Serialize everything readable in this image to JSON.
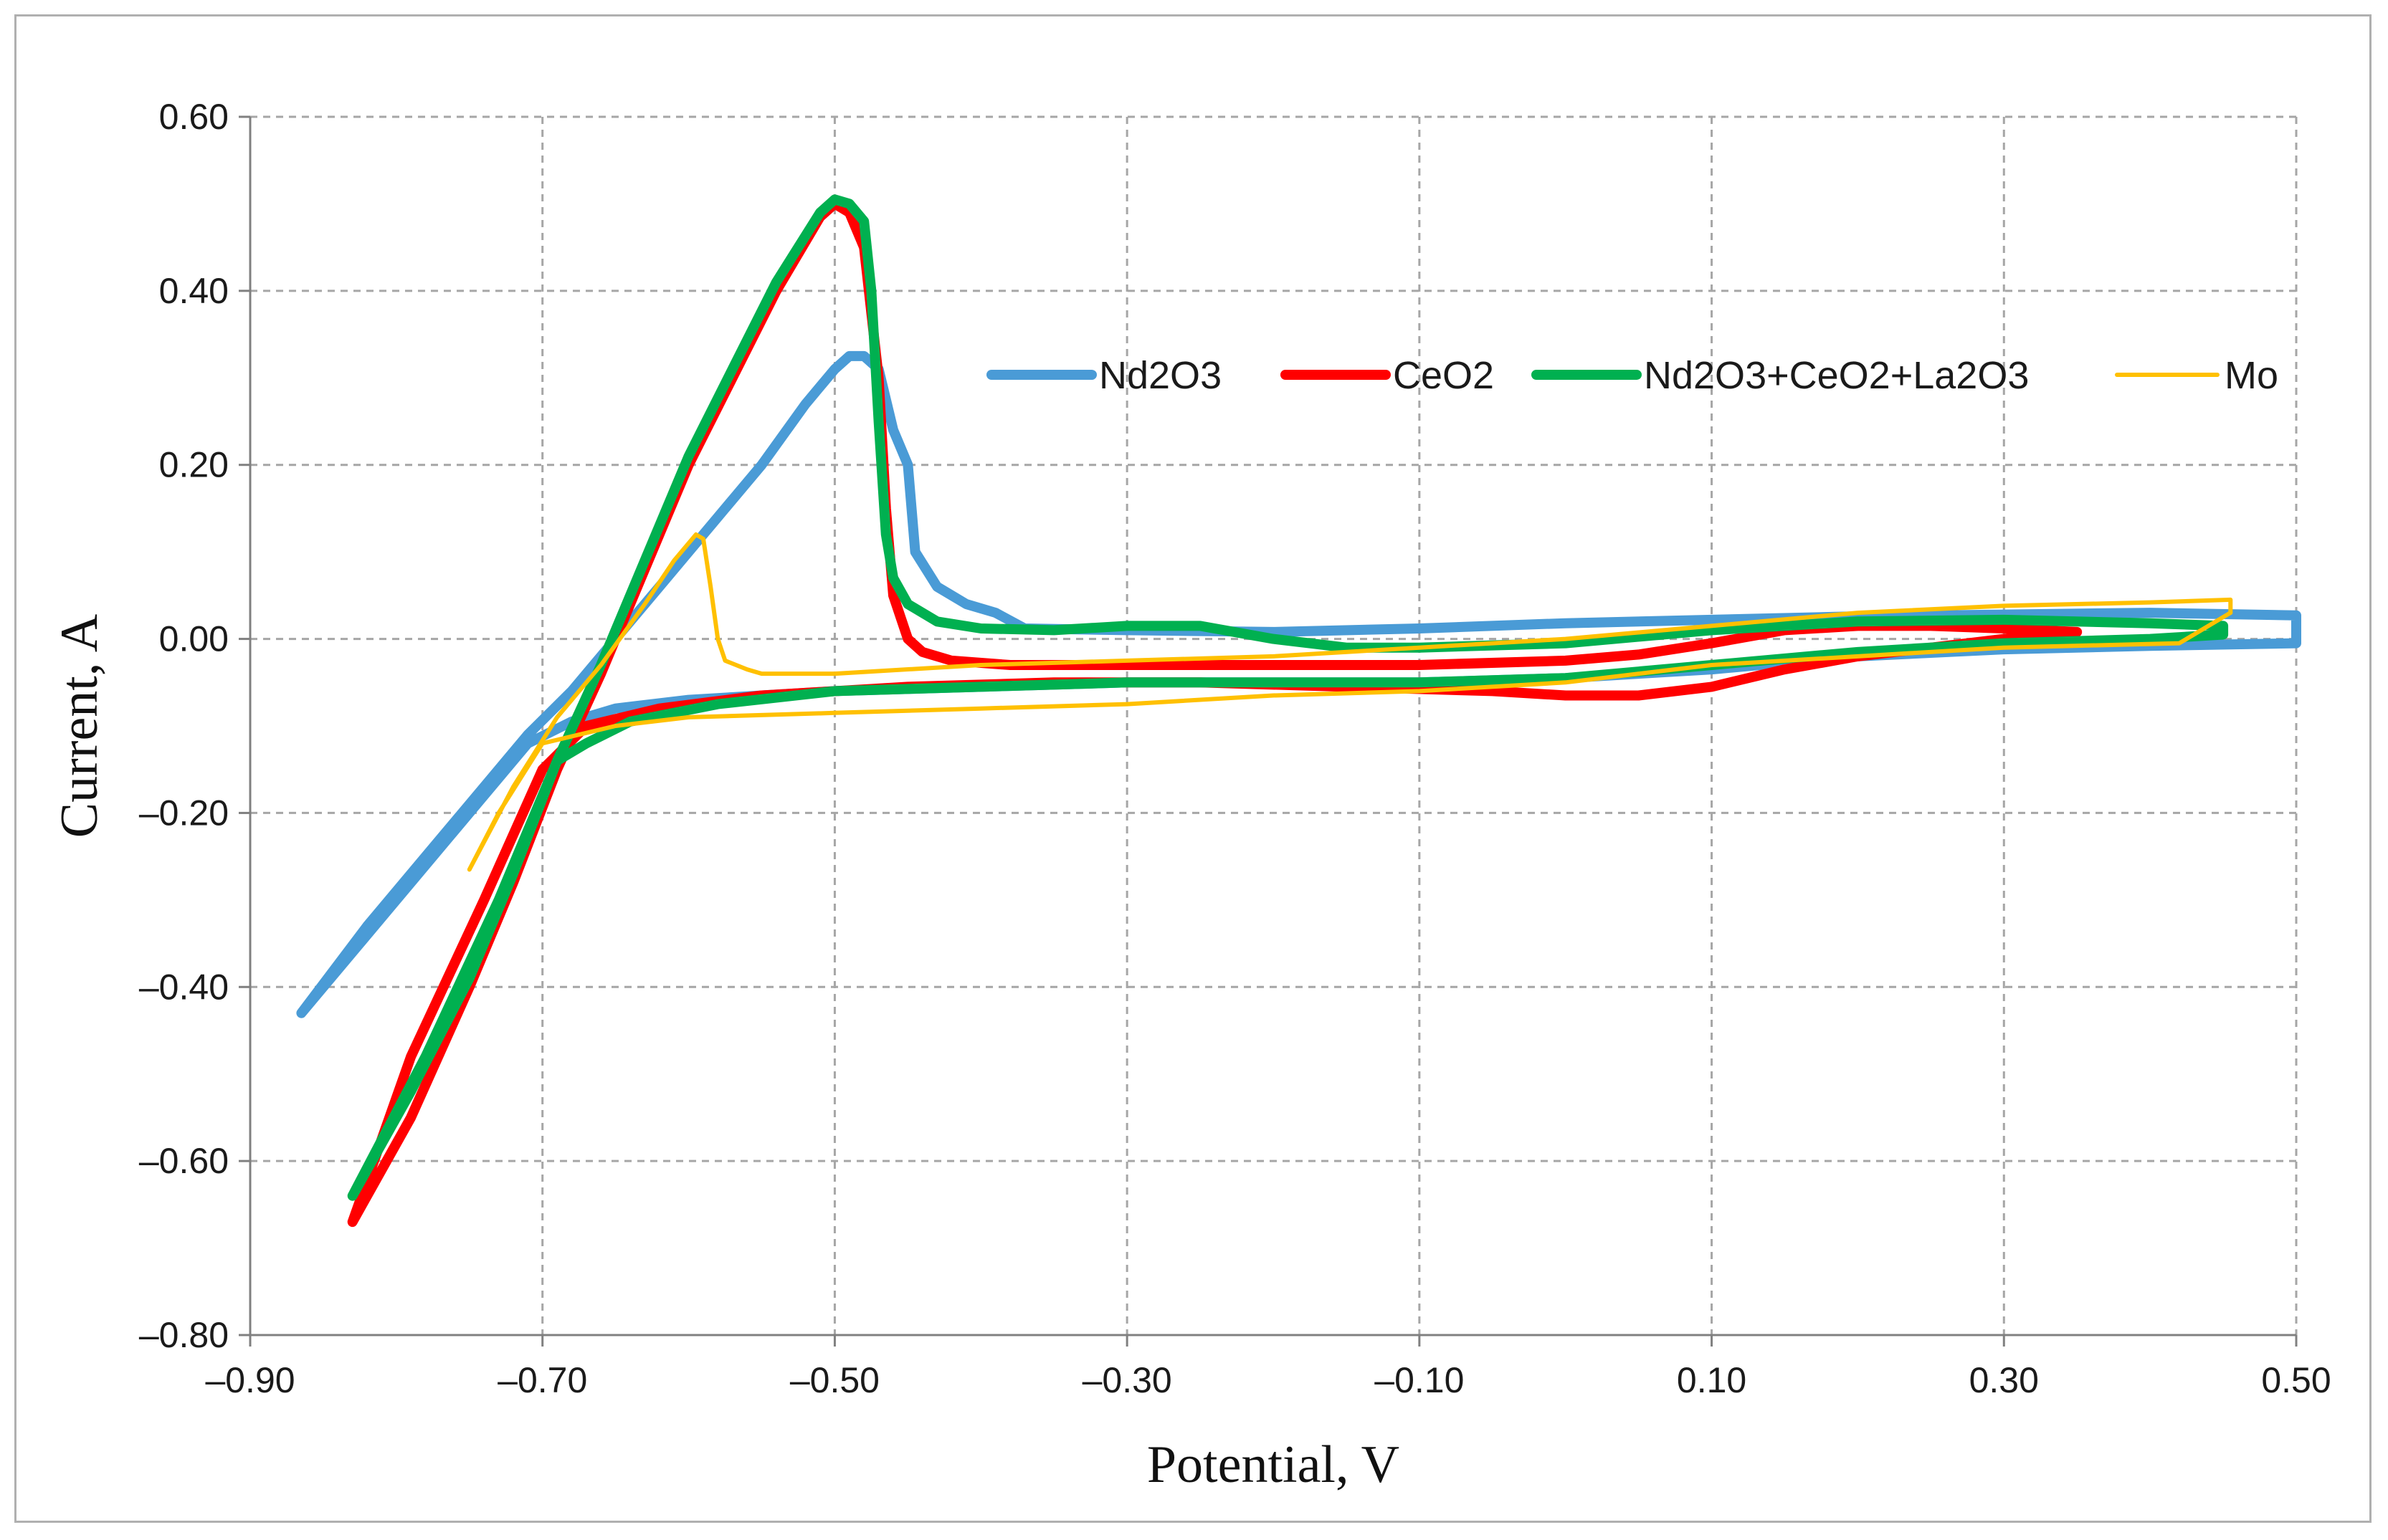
{
  "chart_data": {
    "type": "line",
    "title": "",
    "xlabel": "Potential, V",
    "ylabel": "Current,  A",
    "xlim": [
      -0.9,
      0.5
    ],
    "ylim": [
      -0.8,
      0.6
    ],
    "x_ticks": [
      -0.9,
      -0.7,
      -0.5,
      -0.3,
      -0.1,
      0.1,
      0.3,
      0.5
    ],
    "x_tick_labels": [
      "–0.90",
      "–0.70",
      "–0.50",
      "–0.30",
      "–0.10",
      "0.10",
      "0.30",
      "0.50"
    ],
    "y_ticks": [
      0.6,
      0.4,
      0.2,
      0.0,
      -0.2,
      -0.4,
      -0.6,
      -0.8
    ],
    "y_tick_labels": [
      "0.60",
      "0.40",
      "0.20",
      "0.00",
      "–0.20",
      "–0.40",
      "–0.60",
      "–0.80"
    ],
    "grid": "dashed",
    "legend_position": "top-right",
    "series": [
      {
        "name": "Nd2O3",
        "color": "#4a9bd6",
        "width": "thick",
        "points": [
          [
            -0.865,
            -0.43
          ],
          [
            -0.82,
            -0.33
          ],
          [
            -0.78,
            -0.25
          ],
          [
            -0.74,
            -0.17
          ],
          [
            -0.71,
            -0.11
          ],
          [
            -0.68,
            -0.06
          ],
          [
            -0.65,
            0.0
          ],
          [
            -0.62,
            0.06
          ],
          [
            -0.58,
            0.14
          ],
          [
            -0.55,
            0.2
          ],
          [
            -0.52,
            0.27
          ],
          [
            -0.5,
            0.31
          ],
          [
            -0.49,
            0.325
          ],
          [
            -0.48,
            0.325
          ],
          [
            -0.47,
            0.31
          ],
          [
            -0.46,
            0.24
          ],
          [
            -0.45,
            0.2
          ],
          [
            -0.445,
            0.1
          ],
          [
            -0.43,
            0.06
          ],
          [
            -0.41,
            0.04
          ],
          [
            -0.39,
            0.03
          ],
          [
            -0.37,
            0.012
          ],
          [
            -0.3,
            0.01
          ],
          [
            -0.2,
            0.008
          ],
          [
            -0.1,
            0.012
          ],
          [
            0.0,
            0.018
          ],
          [
            0.1,
            0.022
          ],
          [
            0.2,
            0.026
          ],
          [
            0.3,
            0.028
          ],
          [
            0.4,
            0.03
          ],
          [
            0.5,
            0.027
          ],
          [
            0.5,
            -0.005
          ],
          [
            0.4,
            -0.008
          ],
          [
            0.3,
            -0.012
          ],
          [
            0.2,
            -0.02
          ],
          [
            0.1,
            -0.035
          ],
          [
            0.0,
            -0.045
          ],
          [
            -0.1,
            -0.05
          ],
          [
            -0.2,
            -0.05
          ],
          [
            -0.3,
            -0.05
          ],
          [
            -0.4,
            -0.055
          ],
          [
            -0.5,
            -0.06
          ],
          [
            -0.6,
            -0.07
          ],
          [
            -0.65,
            -0.08
          ],
          [
            -0.68,
            -0.095
          ],
          [
            -0.71,
            -0.12
          ],
          [
            -0.75,
            -0.2
          ],
          [
            -0.79,
            -0.28
          ],
          [
            -0.865,
            -0.43
          ]
        ]
      },
      {
        "name": "CeO2",
        "color": "#ff0000",
        "width": "thick",
        "points": [
          [
            -0.83,
            -0.67
          ],
          [
            -0.79,
            -0.55
          ],
          [
            -0.75,
            -0.4
          ],
          [
            -0.72,
            -0.28
          ],
          [
            -0.69,
            -0.15
          ],
          [
            -0.66,
            -0.04
          ],
          [
            -0.63,
            0.08
          ],
          [
            -0.6,
            0.2
          ],
          [
            -0.57,
            0.3
          ],
          [
            -0.54,
            0.4
          ],
          [
            -0.51,
            0.485
          ],
          [
            -0.5,
            0.5
          ],
          [
            -0.49,
            0.49
          ],
          [
            -0.48,
            0.45
          ],
          [
            -0.47,
            0.3
          ],
          [
            -0.465,
            0.15
          ],
          [
            -0.46,
            0.05
          ],
          [
            -0.45,
            0.0
          ],
          [
            -0.44,
            -0.015
          ],
          [
            -0.42,
            -0.025
          ],
          [
            -0.38,
            -0.03
          ],
          [
            -0.3,
            -0.03
          ],
          [
            -0.2,
            -0.03
          ],
          [
            -0.1,
            -0.03
          ],
          [
            0.0,
            -0.025
          ],
          [
            0.05,
            -0.018
          ],
          [
            0.1,
            -0.005
          ],
          [
            0.15,
            0.01
          ],
          [
            0.2,
            0.015
          ],
          [
            0.25,
            0.015
          ],
          [
            0.3,
            0.012
          ],
          [
            0.35,
            0.008
          ],
          [
            0.3,
            0.0
          ],
          [
            0.2,
            -0.02
          ],
          [
            0.15,
            -0.035
          ],
          [
            0.1,
            -0.055
          ],
          [
            0.05,
            -0.065
          ],
          [
            0.0,
            -0.065
          ],
          [
            -0.05,
            -0.06
          ],
          [
            -0.15,
            -0.055
          ],
          [
            -0.25,
            -0.05
          ],
          [
            -0.35,
            -0.05
          ],
          [
            -0.45,
            -0.055
          ],
          [
            -0.55,
            -0.065
          ],
          [
            -0.62,
            -0.08
          ],
          [
            -0.67,
            -0.1
          ],
          [
            -0.7,
            -0.15
          ],
          [
            -0.74,
            -0.3
          ],
          [
            -0.79,
            -0.48
          ],
          [
            -0.83,
            -0.67
          ]
        ]
      },
      {
        "name": "Nd2O3+CeO2+La2O3",
        "color": "#00b050",
        "width": "thick",
        "points": [
          [
            -0.83,
            -0.64
          ],
          [
            -0.79,
            -0.52
          ],
          [
            -0.75,
            -0.39
          ],
          [
            -0.72,
            -0.27
          ],
          [
            -0.69,
            -0.14
          ],
          [
            -0.66,
            -0.03
          ],
          [
            -0.63,
            0.09
          ],
          [
            -0.6,
            0.21
          ],
          [
            -0.57,
            0.31
          ],
          [
            -0.54,
            0.41
          ],
          [
            -0.51,
            0.49
          ],
          [
            -0.5,
            0.505
          ],
          [
            -0.49,
            0.5
          ],
          [
            -0.48,
            0.48
          ],
          [
            -0.475,
            0.4
          ],
          [
            -0.47,
            0.25
          ],
          [
            -0.465,
            0.12
          ],
          [
            -0.46,
            0.07
          ],
          [
            -0.45,
            0.04
          ],
          [
            -0.43,
            0.02
          ],
          [
            -0.4,
            0.012
          ],
          [
            -0.35,
            0.01
          ],
          [
            -0.3,
            0.015
          ],
          [
            -0.25,
            0.015
          ],
          [
            -0.2,
            0.0
          ],
          [
            -0.15,
            -0.01
          ],
          [
            -0.1,
            -0.01
          ],
          [
            0.0,
            -0.005
          ],
          [
            0.1,
            0.01
          ],
          [
            0.2,
            0.02
          ],
          [
            0.3,
            0.022
          ],
          [
            0.4,
            0.018
          ],
          [
            0.45,
            0.015
          ],
          [
            0.45,
            0.005
          ],
          [
            0.4,
            0.0
          ],
          [
            0.3,
            -0.005
          ],
          [
            0.2,
            -0.015
          ],
          [
            0.1,
            -0.03
          ],
          [
            0.0,
            -0.045
          ],
          [
            -0.1,
            -0.05
          ],
          [
            -0.2,
            -0.05
          ],
          [
            -0.3,
            -0.05
          ],
          [
            -0.4,
            -0.055
          ],
          [
            -0.5,
            -0.06
          ],
          [
            -0.58,
            -0.075
          ],
          [
            -0.64,
            -0.095
          ],
          [
            -0.67,
            -0.12
          ],
          [
            -0.69,
            -0.14
          ],
          [
            -0.73,
            -0.3
          ],
          [
            -0.78,
            -0.48
          ],
          [
            -0.83,
            -0.64
          ]
        ]
      },
      {
        "name": "Mo",
        "color": "#ffc000",
        "width": "thin",
        "points": [
          [
            -0.75,
            -0.265
          ],
          [
            -0.72,
            -0.17
          ],
          [
            -0.69,
            -0.09
          ],
          [
            -0.66,
            -0.03
          ],
          [
            -0.63,
            0.04
          ],
          [
            -0.61,
            0.09
          ],
          [
            -0.595,
            0.12
          ],
          [
            -0.59,
            0.115
          ],
          [
            -0.585,
            0.06
          ],
          [
            -0.58,
            0.0
          ],
          [
            -0.575,
            -0.025
          ],
          [
            -0.56,
            -0.035
          ],
          [
            -0.55,
            -0.04
          ],
          [
            -0.5,
            -0.04
          ],
          [
            -0.4,
            -0.03
          ],
          [
            -0.3,
            -0.025
          ],
          [
            -0.2,
            -0.02
          ],
          [
            -0.1,
            -0.01
          ],
          [
            0.0,
            0.0
          ],
          [
            0.1,
            0.015
          ],
          [
            0.2,
            0.03
          ],
          [
            0.3,
            0.038
          ],
          [
            0.4,
            0.042
          ],
          [
            0.455,
            0.045
          ],
          [
            0.455,
            0.03
          ],
          [
            0.42,
            -0.005
          ],
          [
            0.3,
            -0.01
          ],
          [
            0.2,
            -0.02
          ],
          [
            0.1,
            -0.03
          ],
          [
            0.0,
            -0.05
          ],
          [
            -0.1,
            -0.06
          ],
          [
            -0.2,
            -0.065
          ],
          [
            -0.3,
            -0.075
          ],
          [
            -0.4,
            -0.08
          ],
          [
            -0.5,
            -0.085
          ],
          [
            -0.6,
            -0.09
          ],
          [
            -0.65,
            -0.1
          ],
          [
            -0.7,
            -0.12
          ],
          [
            -0.73,
            -0.2
          ],
          [
            -0.75,
            -0.265
          ]
        ]
      }
    ]
  }
}
